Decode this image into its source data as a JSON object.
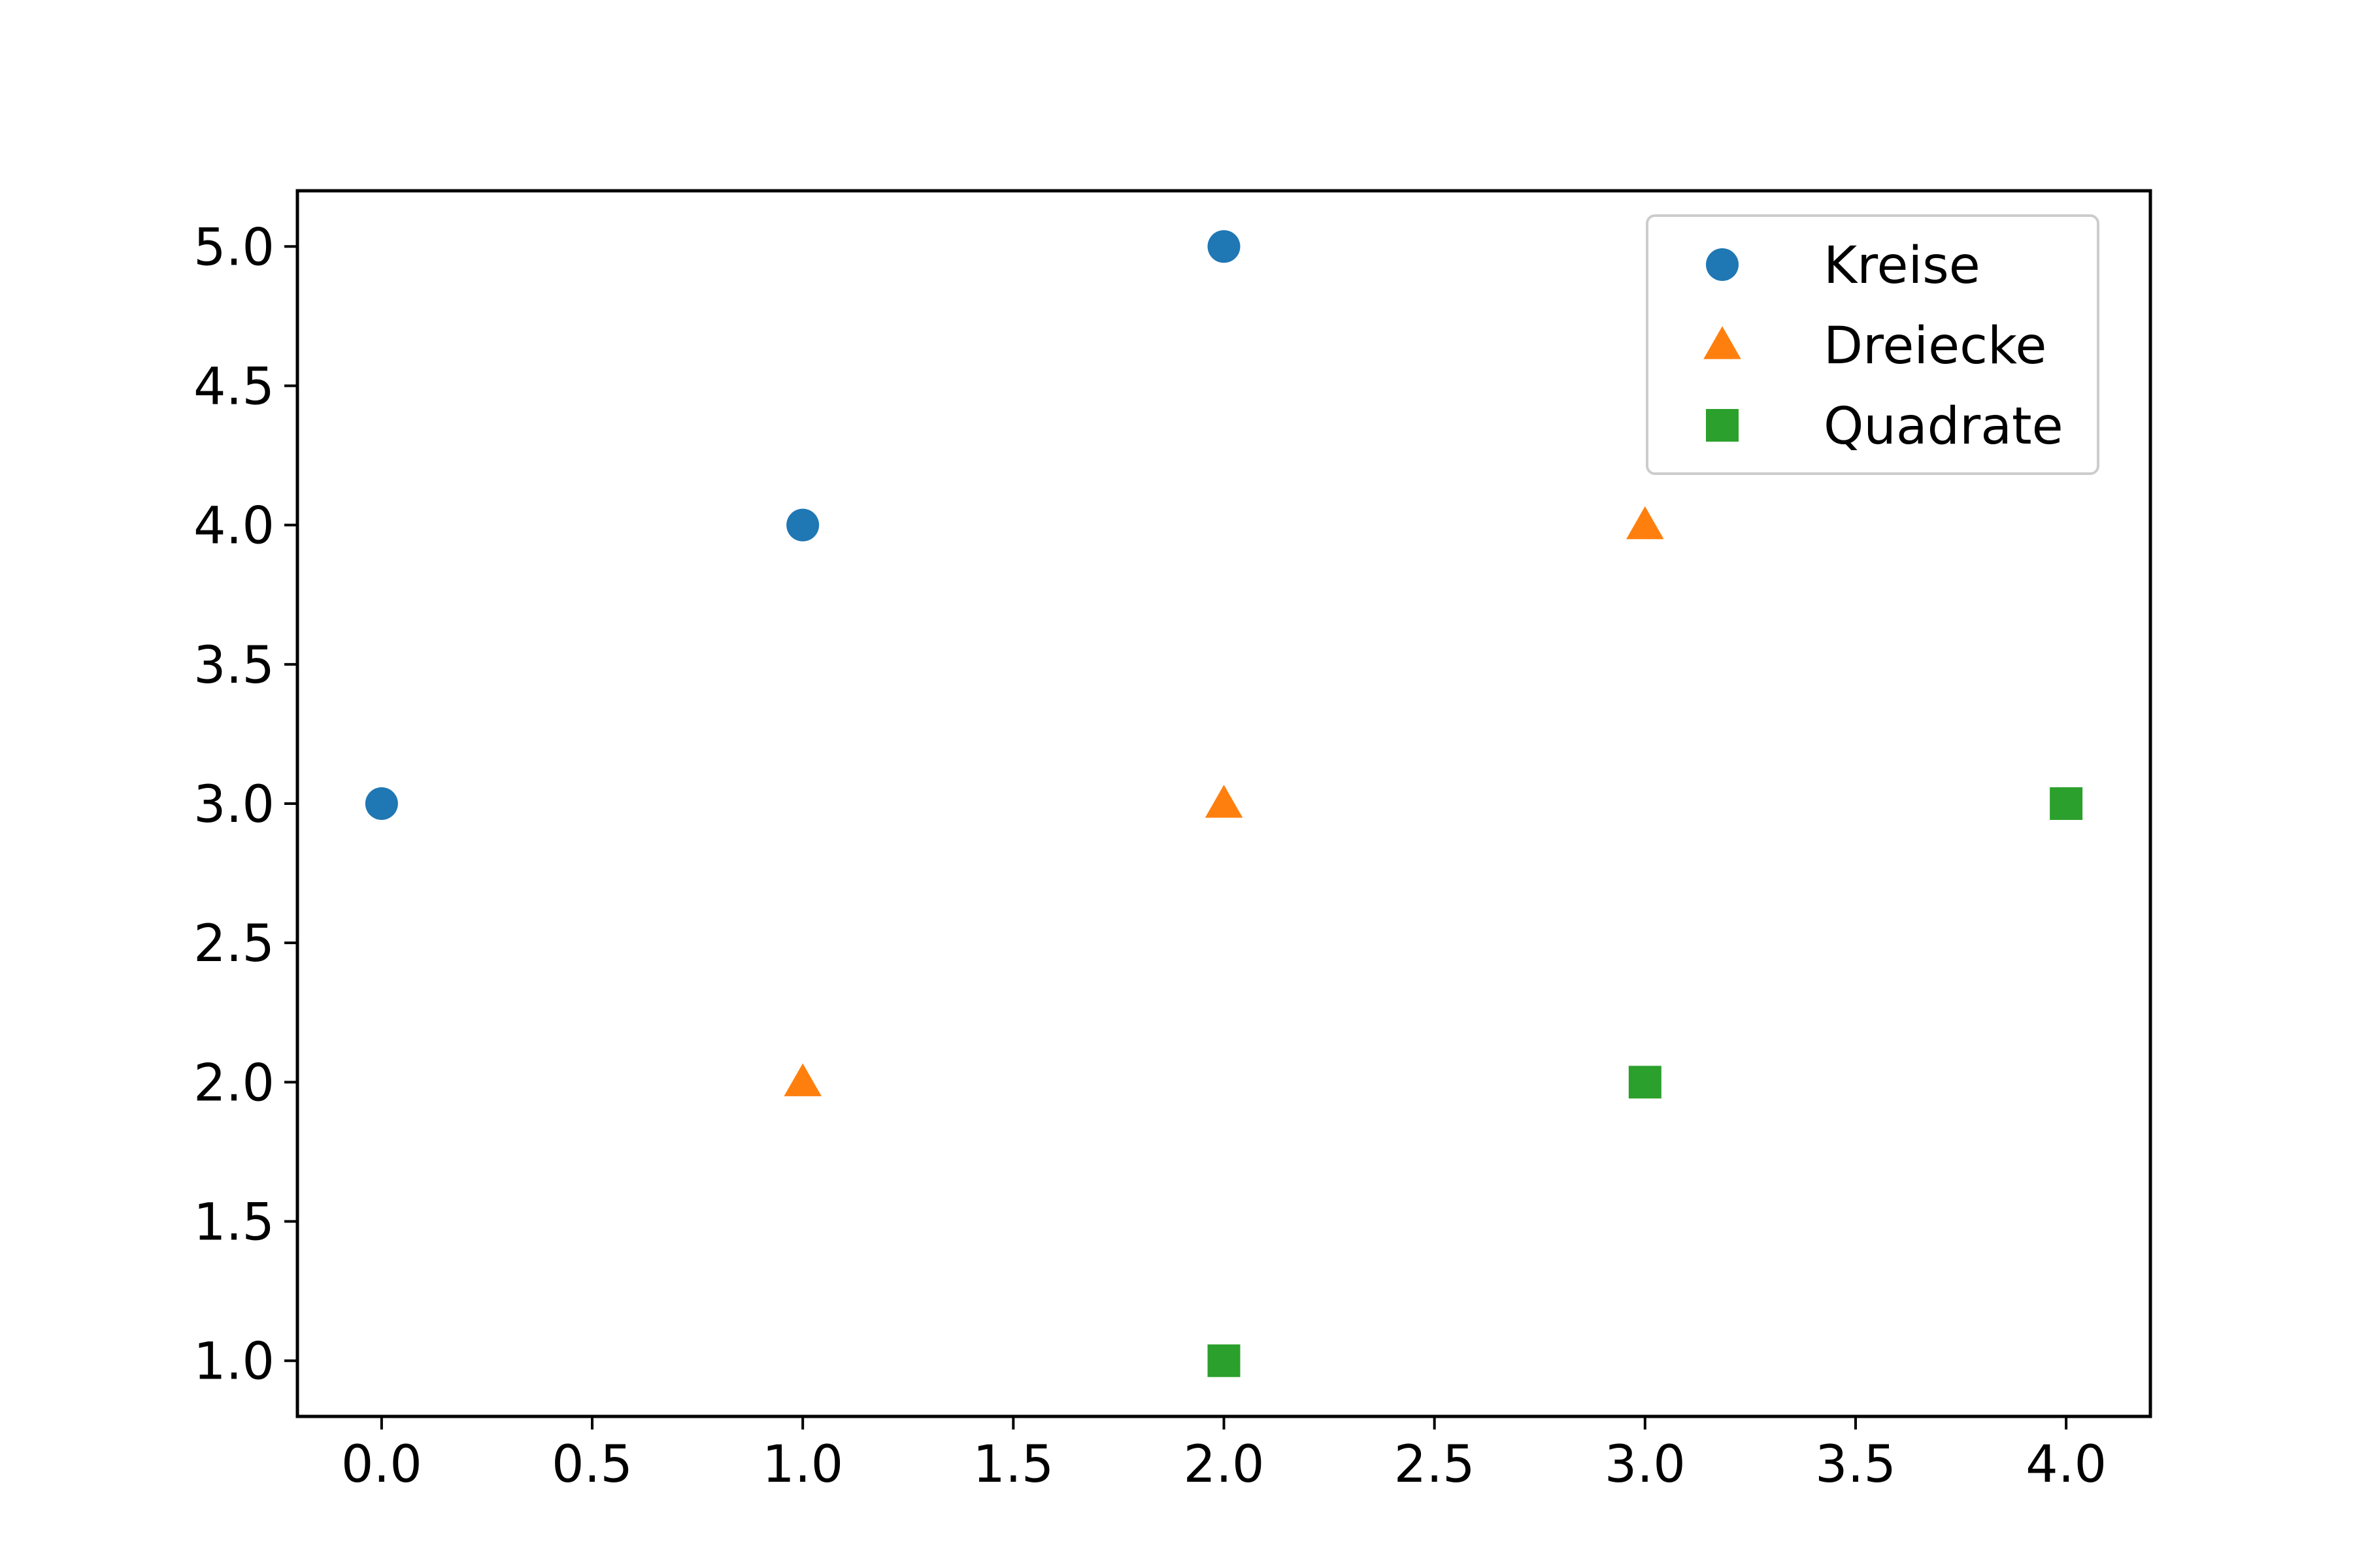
{
  "chart_data": {
    "type": "scatter",
    "title": "",
    "xlabel": "",
    "ylabel": "",
    "xlim": [
      -0.2,
      4.2
    ],
    "ylim": [
      0.8,
      5.2
    ],
    "x_ticks": [
      0.0,
      0.5,
      1.0,
      1.5,
      2.0,
      2.5,
      3.0,
      3.5,
      4.0
    ],
    "x_tick_labels": [
      "0.0",
      "0.5",
      "1.0",
      "1.5",
      "2.0",
      "2.5",
      "3.0",
      "3.5",
      "4.0"
    ],
    "y_ticks": [
      1.0,
      1.5,
      2.0,
      2.5,
      3.0,
      3.5,
      4.0,
      4.5,
      5.0
    ],
    "y_tick_labels": [
      "1.0",
      "1.5",
      "2.0",
      "2.5",
      "3.0",
      "3.5",
      "4.0",
      "4.5",
      "5.0"
    ],
    "grid": false,
    "legend_position": "top-right",
    "series": [
      {
        "name": "Kreise",
        "marker": "circle",
        "color": "#1f77b4",
        "points": [
          [
            0,
            3
          ],
          [
            1,
            4
          ],
          [
            2,
            5
          ]
        ]
      },
      {
        "name": "Dreiecke",
        "marker": "triangle",
        "color": "#ff7f0e",
        "points": [
          [
            1,
            2
          ],
          [
            2,
            3
          ],
          [
            3,
            4
          ]
        ]
      },
      {
        "name": "Quadrate",
        "marker": "square",
        "color": "#2ca02c",
        "points": [
          [
            2,
            1
          ],
          [
            3,
            2
          ],
          [
            4,
            3
          ]
        ]
      }
    ]
  }
}
